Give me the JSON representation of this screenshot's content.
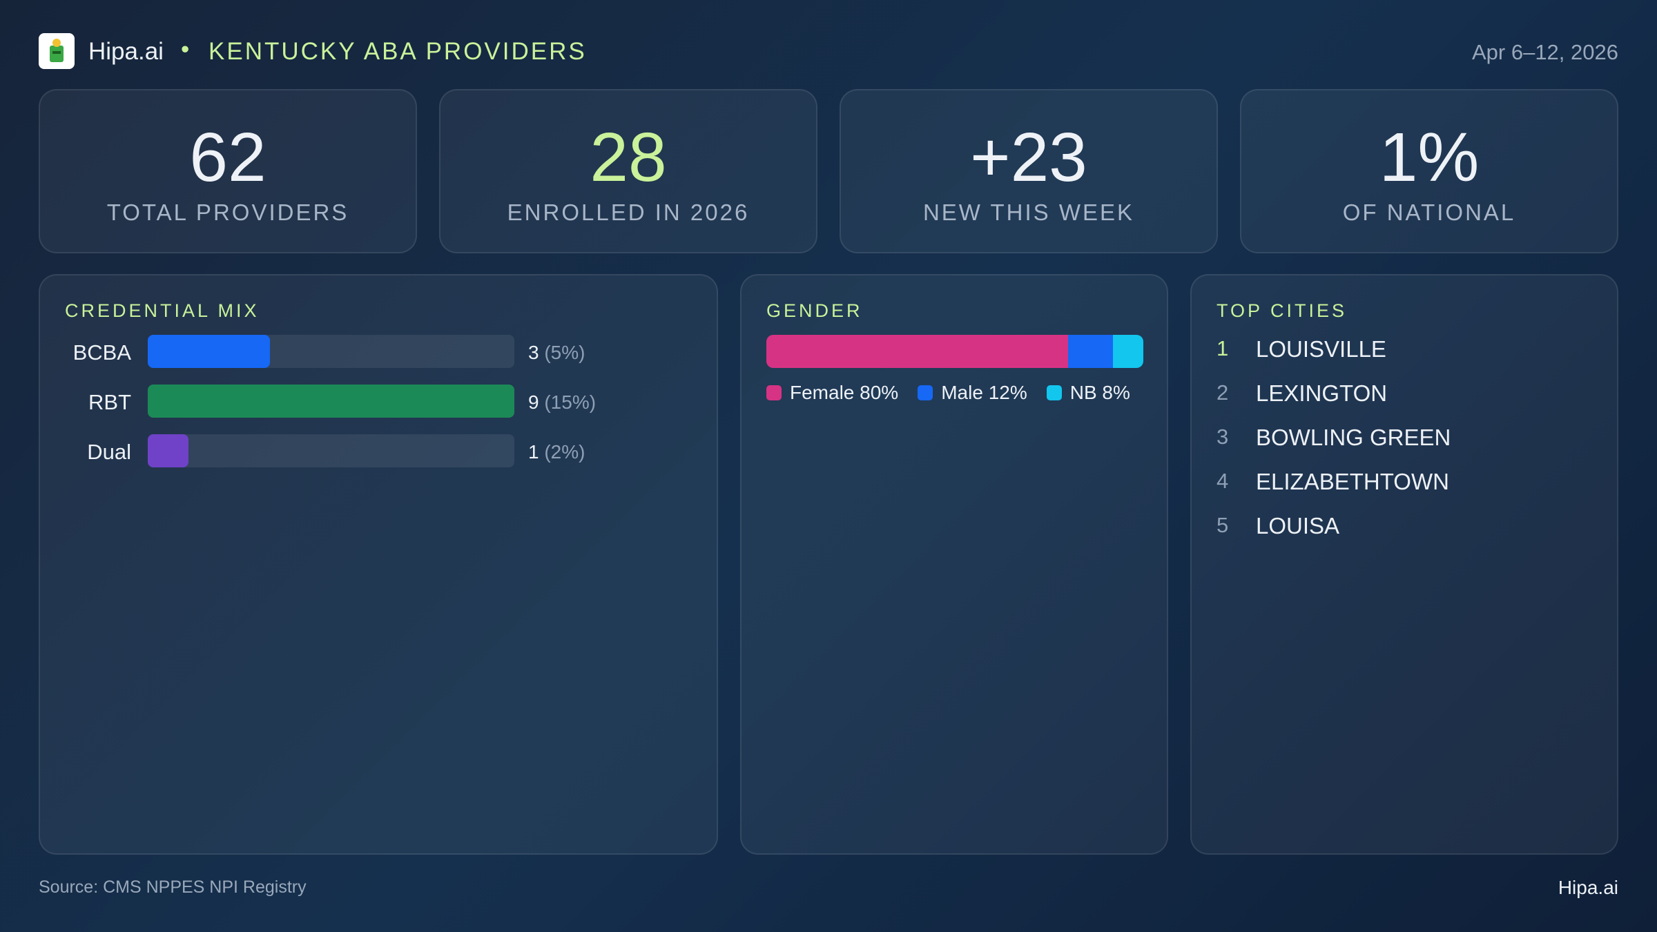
{
  "header": {
    "brand": "Hipa.ai",
    "title": "KENTUCKY ABA PROVIDERS",
    "date": "Apr 6–12, 2026"
  },
  "kpis": [
    {
      "value": "62",
      "label": "TOTAL PROVIDERS"
    },
    {
      "value": "28",
      "label": "ENROLLED IN 2026"
    },
    {
      "value": "+23",
      "label": "NEW THIS WEEK"
    },
    {
      "value": "1%",
      "label": "OF NATIONAL"
    }
  ],
  "credential_mix": {
    "type": "bar",
    "title": "CREDENTIAL MIX",
    "categories": [
      "BCBA",
      "RBT",
      "Dual"
    ],
    "values": [
      3,
      9,
      1
    ],
    "shares": [
      {
        "value": 5,
        "label": "(5%)"
      },
      {
        "value": 15,
        "label": "(15%)"
      },
      {
        "value": 2,
        "label": "(2%)"
      }
    ],
    "colors": [
      "#1668f5",
      "#1c8a57",
      "#6f42c8"
    ],
    "xlim": [
      0,
      9
    ]
  },
  "gender": {
    "type": "stacked-bar",
    "title": "GENDER",
    "xlim": [
      0,
      100
    ],
    "series": [
      {
        "name": "Female",
        "color": "#d63384",
        "values": [
          80
        ],
        "value_labels": [
          "80%"
        ]
      },
      {
        "name": "Male",
        "color": "#1668f5",
        "values": [
          12
        ],
        "value_labels": [
          "12%"
        ]
      },
      {
        "name": "NB",
        "color": "#12c6ee",
        "values": [
          8
        ],
        "value_labels": [
          "8%"
        ]
      }
    ]
  },
  "top_cities": {
    "title": "TOP CITIES",
    "items": [
      {
        "rank": 1,
        "name": "LOUISVILLE"
      },
      {
        "rank": 2,
        "name": "LEXINGTON"
      },
      {
        "rank": 3,
        "name": "BOWLING GREEN"
      },
      {
        "rank": 4,
        "name": "ELIZABETHTOWN"
      },
      {
        "rank": 5,
        "name": "LOUISA"
      }
    ]
  },
  "footer": {
    "source": "Source: CMS NPPES NPI Registry",
    "brand": "Hipa.ai"
  }
}
